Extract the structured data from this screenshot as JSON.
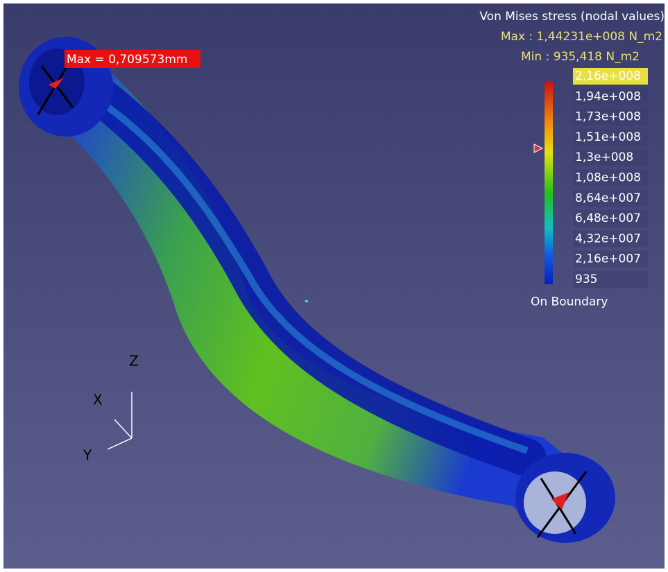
{
  "legend": {
    "title": "Von Mises stress (nodal values)",
    "max": "Max : 1,44231e+008 N_m2",
    "min": "Min : 935,418 N_m2",
    "scale_labels": [
      "2,16e+008",
      "1,94e+008",
      "1,73e+008",
      "1,51e+008",
      "1,3e+008",
      "1,08e+008",
      "8,64e+007",
      "6,48e+007",
      "4,32e+007",
      "2,16e+007",
      "935"
    ],
    "note": "On Boundary"
  },
  "annotation": "Max = 0,709573mm",
  "axes": {
    "x": "X",
    "y": "Y",
    "z": "Z"
  }
}
